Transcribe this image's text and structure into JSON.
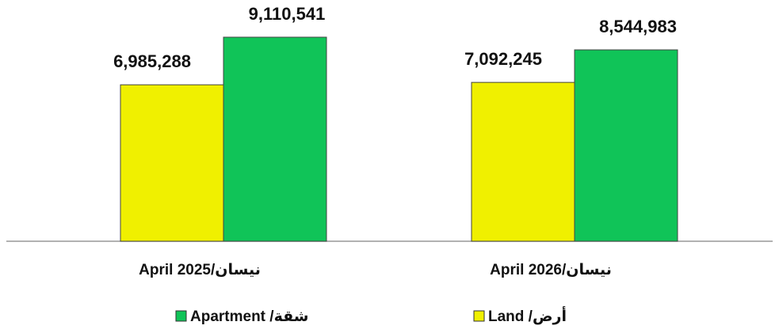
{
  "chart_data": {
    "type": "bar",
    "categories": [
      "April 2025/نيسان",
      "April 2026/نيسان"
    ],
    "series": [
      {
        "name": "Land /أرض",
        "color": "#f0f000",
        "values": [
          6985288,
          7092245
        ],
        "value_labels": [
          "6,985,288",
          "7,092,245"
        ]
      },
      {
        "name": "Apartment /شقة",
        "color": "#10c458",
        "values": [
          9110541,
          8544983
        ],
        "value_labels": [
          "9,110,541",
          "8,544,983"
        ]
      }
    ]
  }
}
